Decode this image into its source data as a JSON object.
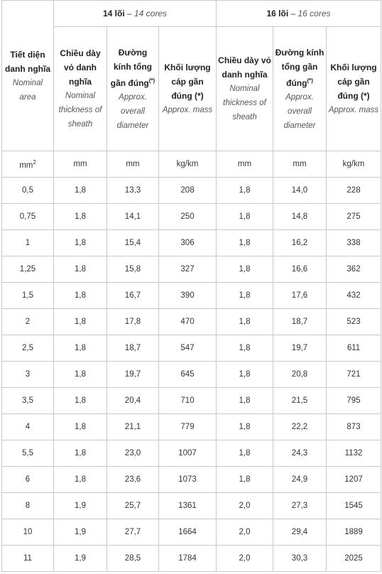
{
  "groups": {
    "g14": {
      "vn": "14 lõi",
      "sep": " – ",
      "en": "14 cores"
    },
    "g16": {
      "vn": "16 lõi",
      "sep": " – ",
      "en": "16 cores"
    }
  },
  "headers": {
    "area": {
      "vn": "Tiết diện danh nghĩa",
      "en": "Nominal area"
    },
    "thickness": {
      "vn": "Chiều dày vỏ danh nghĩa",
      "en": "Nominal thickness of sheath"
    },
    "diameter": {
      "vn": "Đường kính tổng gần đúng",
      "sup": "(*)",
      "en": "Approx. overall diameter"
    },
    "mass": {
      "vn": "Khối lượng cáp gần đúng (*)",
      "en": "Approx. mass"
    }
  },
  "units": {
    "area": "mm",
    "area_sup": "2",
    "thickness": "mm",
    "diameter": "mm",
    "mass": "kg/km"
  },
  "rows": [
    {
      "area": "0,5",
      "t14": "1,8",
      "d14": "13,3",
      "m14": "208",
      "t16": "1,8",
      "d16": "14,0",
      "m16": "228"
    },
    {
      "area": "0,75",
      "t14": "1,8",
      "d14": "14,1",
      "m14": "250",
      "t16": "1,8",
      "d16": "14,8",
      "m16": "275"
    },
    {
      "area": "1",
      "t14": "1,8",
      "d14": "15,4",
      "m14": "306",
      "t16": "1,8",
      "d16": "16,2",
      "m16": "338"
    },
    {
      "area": "1,25",
      "t14": "1,8",
      "d14": "15,8",
      "m14": "327",
      "t16": "1,8",
      "d16": "16,6",
      "m16": "362"
    },
    {
      "area": "1,5",
      "t14": "1,8",
      "d14": "16,7",
      "m14": "390",
      "t16": "1,8",
      "d16": "17,6",
      "m16": "432"
    },
    {
      "area": "2",
      "t14": "1,8",
      "d14": "17,8",
      "m14": "470",
      "t16": "1,8",
      "d16": "18,7",
      "m16": "523"
    },
    {
      "area": "2,5",
      "t14": "1,8",
      "d14": "18,7",
      "m14": "547",
      "t16": "1,8",
      "d16": "19,7",
      "m16": "611"
    },
    {
      "area": "3",
      "t14": "1,8",
      "d14": "19,7",
      "m14": "645",
      "t16": "1,8",
      "d16": "20,8",
      "m16": "721"
    },
    {
      "area": "3,5",
      "t14": "1,8",
      "d14": "20,4",
      "m14": "710",
      "t16": "1,8",
      "d16": "21,5",
      "m16": "795"
    },
    {
      "area": "4",
      "t14": "1,8",
      "d14": "21,1",
      "m14": "779",
      "t16": "1,8",
      "d16": "22,2",
      "m16": "873"
    },
    {
      "area": "5,5",
      "t14": "1,8",
      "d14": "23,0",
      "m14": "1007",
      "t16": "1,8",
      "d16": "24,3",
      "m16": "1132"
    },
    {
      "area": "6",
      "t14": "1,8",
      "d14": "23,6",
      "m14": "1073",
      "t16": "1,8",
      "d16": "24,9",
      "m16": "1207"
    },
    {
      "area": "8",
      "t14": "1,9",
      "d14": "25,7",
      "m14": "1361",
      "t16": "2,0",
      "d16": "27,3",
      "m16": "1545"
    },
    {
      "area": "10",
      "t14": "1,9",
      "d14": "27,7",
      "m14": "1664",
      "t16": "2,0",
      "d16": "29,4",
      "m16": "1889"
    },
    {
      "area": "11",
      "t14": "1,9",
      "d14": "28,5",
      "m14": "1784",
      "t16": "2,0",
      "d16": "30,3",
      "m16": "2025"
    }
  ]
}
